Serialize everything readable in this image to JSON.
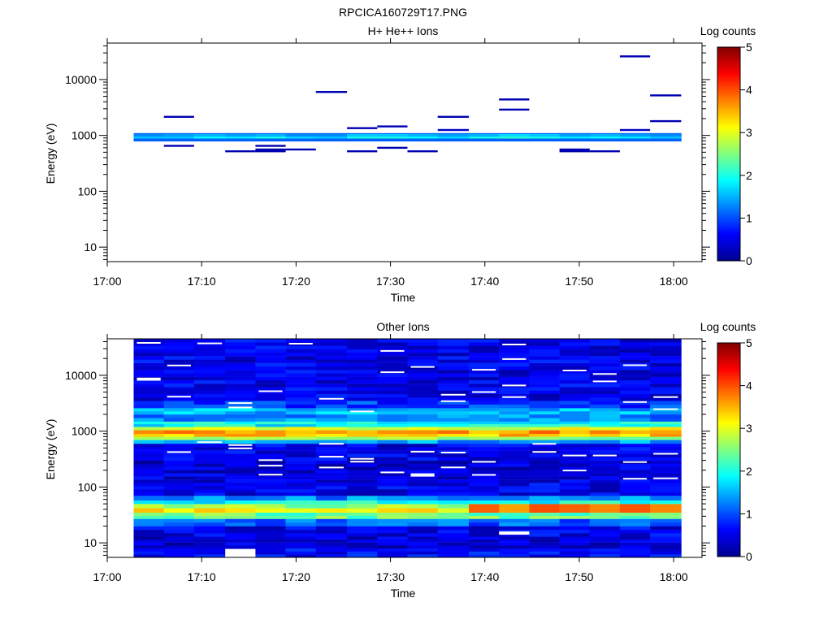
{
  "figure": {
    "title": "RPCICA160729T17.PNG"
  },
  "colormap": [
    "#00008f",
    "#0000ff",
    "#0080ff",
    "#00ffff",
    "#80ff80",
    "#ffff00",
    "#ff8000",
    "#ff0000",
    "#800000"
  ],
  "chart_data": [
    {
      "type": "heatmap",
      "title": "H+ He++ Ions",
      "xlabel": "Time",
      "ylabel": "Energy (eV)",
      "x_ticks": [
        "17:00",
        "17:10",
        "17:20",
        "17:30",
        "17:40",
        "17:50",
        "18:00"
      ],
      "x_range_minutes": [
        0,
        63
      ],
      "y_scale": "log",
      "y_ticks": [
        "10",
        "100",
        "1000",
        "10000"
      ],
      "y_range": [
        5.5,
        45000
      ],
      "colorbar": {
        "label": "Log counts",
        "ticks": [
          "0",
          "1",
          "2",
          "3",
          "4",
          "5"
        ],
        "range": [
          0,
          5
        ]
      },
      "time_bins_minutes": [
        [
          2.8,
          6.0
        ],
        [
          6.0,
          9.2
        ],
        [
          9.2,
          12.5
        ],
        [
          12.5,
          15.7
        ],
        [
          15.7,
          18.9
        ],
        [
          18.9,
          22.1
        ],
        [
          22.1,
          25.4
        ],
        [
          25.4,
          28.6
        ],
        [
          28.6,
          31.8
        ],
        [
          31.8,
          35.0
        ],
        [
          35.0,
          38.3
        ],
        [
          38.3,
          41.5
        ],
        [
          41.5,
          44.7
        ],
        [
          44.7,
          47.9
        ],
        [
          47.9,
          51.1
        ],
        [
          51.1,
          54.3
        ],
        [
          54.3,
          57.5
        ],
        [
          57.5,
          60.8
        ]
      ],
      "bands": [
        {
          "e_low": 780,
          "e_high": 1100,
          "values": [
            1.1,
            1.1,
            1.1,
            1.1,
            1.1,
            1.1,
            1.1,
            1.1,
            1.1,
            1.1,
            1.1,
            1.1,
            1.1,
            1.1,
            1.1,
            1.1,
            1.1,
            1.1
          ]
        },
        {
          "e_low": 880,
          "e_high": 1000,
          "values": [
            1.6,
            1.6,
            1.9,
            1.8,
            2.0,
            1.7,
            1.6,
            2.0,
            2.0,
            1.9,
            1.7,
            2.0,
            2.1,
            2.0,
            1.8,
            1.9,
            1.8,
            1.6
          ]
        },
        {
          "e_low": 950,
          "e_high": 1060,
          "values": [
            1.3,
            1.4,
            1.5,
            1.4,
            1.5,
            1.3,
            1.3,
            1.6,
            1.6,
            1.5,
            1.4,
            1.5,
            1.7,
            1.6,
            1.4,
            1.5,
            1.4,
            1.3
          ]
        }
      ],
      "lines": [
        {
          "t0": 6.0,
          "t1": 9.2,
          "energy": 2150,
          "value": 0.2
        },
        {
          "t0": 6.0,
          "t1": 9.2,
          "energy": 650,
          "value": 0.2
        },
        {
          "t0": 12.5,
          "t1": 15.7,
          "energy": 520,
          "value": 0.2
        },
        {
          "t0": 15.7,
          "t1": 18.9,
          "energy": 650,
          "value": 0.2
        },
        {
          "t0": 15.7,
          "t1": 18.9,
          "energy": 560,
          "value": 0.2
        },
        {
          "t0": 15.7,
          "t1": 18.9,
          "energy": 520,
          "value": 0.2
        },
        {
          "t0": 18.9,
          "t1": 22.1,
          "energy": 560,
          "value": 0.2
        },
        {
          "t0": 22.1,
          "t1": 25.4,
          "energy": 6000,
          "value": 0.2
        },
        {
          "t0": 25.4,
          "t1": 28.6,
          "energy": 1350,
          "value": 0.2
        },
        {
          "t0": 25.4,
          "t1": 28.6,
          "energy": 520,
          "value": 0.2
        },
        {
          "t0": 28.6,
          "t1": 31.8,
          "energy": 1450,
          "value": 0.2
        },
        {
          "t0": 28.6,
          "t1": 31.8,
          "energy": 600,
          "value": 0.2
        },
        {
          "t0": 31.8,
          "t1": 35.0,
          "energy": 520,
          "value": 0.2
        },
        {
          "t0": 35.0,
          "t1": 38.3,
          "energy": 2150,
          "value": 0.2
        },
        {
          "t0": 35.0,
          "t1": 38.3,
          "energy": 1250,
          "value": 0.3
        },
        {
          "t0": 41.5,
          "t1": 44.7,
          "energy": 4400,
          "value": 0.2
        },
        {
          "t0": 41.5,
          "t1": 44.7,
          "energy": 2900,
          "value": 0.2
        },
        {
          "t0": 47.9,
          "t1": 51.1,
          "energy": 560,
          "value": 0.2
        },
        {
          "t0": 47.9,
          "t1": 51.1,
          "energy": 520,
          "value": 0.2
        },
        {
          "t0": 51.1,
          "t1": 54.3,
          "energy": 520,
          "value": 0.2
        },
        {
          "t0": 54.3,
          "t1": 57.5,
          "energy": 26000,
          "value": 0.2
        },
        {
          "t0": 54.3,
          "t1": 57.5,
          "energy": 1250,
          "value": 0.3
        },
        {
          "t0": 57.5,
          "t1": 60.8,
          "energy": 5200,
          "value": 0.2
        },
        {
          "t0": 57.5,
          "t1": 60.8,
          "energy": 1800,
          "value": 0.2
        }
      ]
    },
    {
      "type": "heatmap",
      "title": "Other Ions",
      "xlabel": "Time",
      "ylabel": "Energy (eV)",
      "x_ticks": [
        "17:00",
        "17:10",
        "17:20",
        "17:30",
        "17:40",
        "17:50",
        "18:00"
      ],
      "x_range_minutes": [
        0,
        63
      ],
      "y_scale": "log",
      "y_ticks": [
        "10",
        "100",
        "1000",
        "10000"
      ],
      "y_range": [
        5.5,
        45000
      ],
      "colorbar": {
        "label": "Log counts",
        "ticks": [
          "0",
          "1",
          "2",
          "3",
          "4",
          "5"
        ],
        "range": [
          0,
          5
        ]
      },
      "time_bins_minutes": [
        [
          2.8,
          6.0
        ],
        [
          6.0,
          9.2
        ],
        [
          9.2,
          12.5
        ],
        [
          12.5,
          15.7
        ],
        [
          15.7,
          18.9
        ],
        [
          18.9,
          22.1
        ],
        [
          22.1,
          25.4
        ],
        [
          25.4,
          28.6
        ],
        [
          28.6,
          31.8
        ],
        [
          31.8,
          35.0
        ],
        [
          35.0,
          38.3
        ],
        [
          38.3,
          41.5
        ],
        [
          41.5,
          44.7
        ],
        [
          44.7,
          47.9
        ],
        [
          47.9,
          51.1
        ],
        [
          51.1,
          54.3
        ],
        [
          54.3,
          57.5
        ],
        [
          57.5,
          60.8
        ]
      ],
      "energy_profile": [
        {
          "e_low": 5.5,
          "e_high": 8,
          "value": 0.6
        },
        {
          "e_low": 8,
          "e_high": 13,
          "value": 0.4
        },
        {
          "e_low": 13,
          "e_high": 20,
          "value": 0.5
        },
        {
          "e_low": 20,
          "e_high": 27,
          "value": 1.1
        },
        {
          "e_low": 27,
          "e_high": 35,
          "value": 2.4
        },
        {
          "e_low": 35,
          "e_high": 42,
          "value": 3.1
        },
        {
          "e_low": 42,
          "e_high": 50,
          "value": 2.6
        },
        {
          "e_low": 50,
          "e_high": 58,
          "value": 1.9
        },
        {
          "e_low": 58,
          "e_high": 70,
          "value": 1.3
        },
        {
          "e_low": 70,
          "e_high": 120,
          "value": 0.5
        },
        {
          "e_low": 120,
          "e_high": 300,
          "value": 0.4
        },
        {
          "e_low": 300,
          "e_high": 600,
          "value": 0.5
        },
        {
          "e_low": 600,
          "e_high": 700,
          "value": 1.4
        },
        {
          "e_low": 700,
          "e_high": 800,
          "value": 2.6
        },
        {
          "e_low": 800,
          "e_high": 900,
          "value": 3.4
        },
        {
          "e_low": 900,
          "e_high": 1050,
          "value": 3.6
        },
        {
          "e_low": 1050,
          "e_high": 1200,
          "value": 3.0
        },
        {
          "e_low": 1200,
          "e_high": 1500,
          "value": 1.9
        },
        {
          "e_low": 1500,
          "e_high": 2000,
          "value": 1.3
        },
        {
          "e_low": 2000,
          "e_high": 2600,
          "value": 1.5
        },
        {
          "e_low": 2600,
          "e_high": 3500,
          "value": 0.9
        },
        {
          "e_low": 3500,
          "e_high": 45000,
          "value": 0.5
        }
      ],
      "late_enhancement": {
        "t_start": 38.3,
        "e_low": 35,
        "e_high": 50,
        "value": 3.8
      },
      "gaps": [
        {
          "t0": 12.5,
          "t1": 15.7,
          "e_low": 5.5,
          "e_high": 7.8
        },
        {
          "t0": 41.5,
          "t1": 44.7,
          "e_low": 14,
          "e_high": 16
        }
      ]
    }
  ]
}
